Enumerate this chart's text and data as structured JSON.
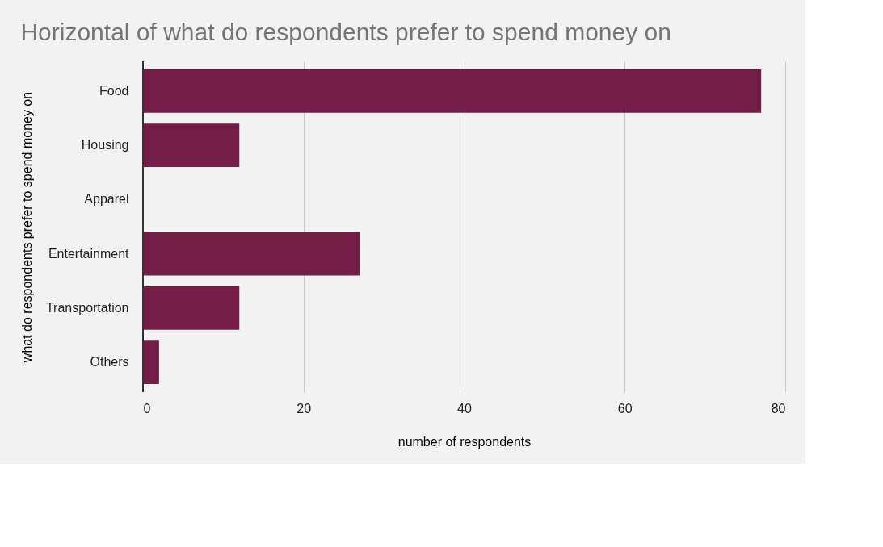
{
  "chart_data": {
    "type": "bar",
    "orientation": "horizontal",
    "title": "Horizontal of what do respondents prefer to spend money on",
    "xlabel": "number of respondents",
    "ylabel": "what do respondents prefer to spend money on",
    "categories": [
      "Food",
      "Housing",
      "Apparel",
      "Entertainment",
      "Transportation",
      "Others"
    ],
    "series": [
      {
        "color": "#731c45",
        "values": [
          77,
          12,
          0,
          27,
          12,
          2
        ]
      }
    ],
    "xlim": [
      0,
      80
    ],
    "xticks": [
      0,
      20,
      40,
      60,
      80
    ],
    "grid": "x"
  }
}
